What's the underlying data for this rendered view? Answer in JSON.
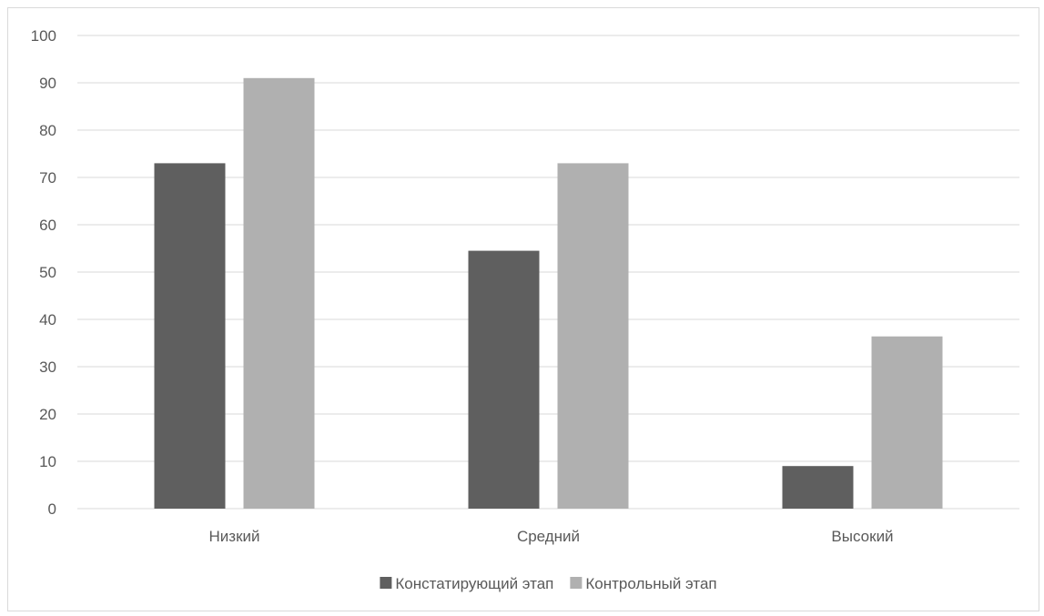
{
  "chart_data": {
    "type": "bar",
    "title": "",
    "xlabel": "",
    "ylabel": "",
    "categories": [
      "Низкий",
      "Средний",
      "Высокий"
    ],
    "series": [
      {
        "name": "Констатирующий этап",
        "values": [
          73,
          54.5,
          9
        ],
        "color": "#5f5f5f"
      },
      {
        "name": "Контрольный этап",
        "values": [
          91,
          73,
          36.4
        ],
        "color": "#b0b0b0"
      }
    ],
    "ylim": [
      0,
      100
    ],
    "yticks": [
      0,
      10,
      20,
      30,
      40,
      50,
      60,
      70,
      80,
      90,
      100
    ],
    "grid": true,
    "gridColor": "#d9d9d9",
    "legend": "bottom"
  }
}
